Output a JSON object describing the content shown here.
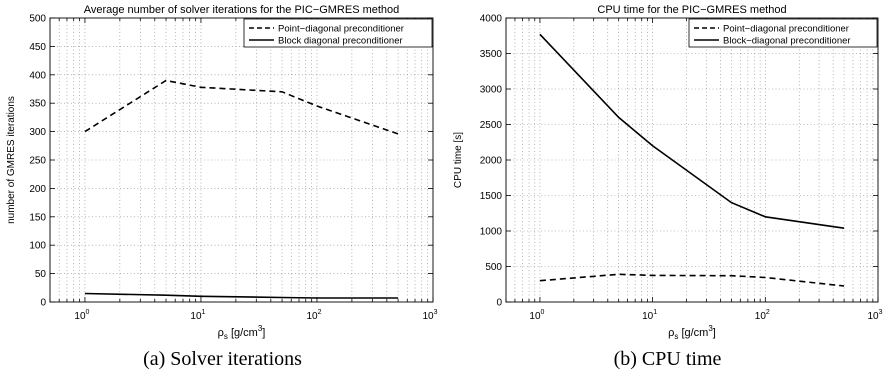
{
  "chart_data": [
    {
      "type": "line",
      "title": "Average number of solver iterations for the PIC−GMRES method",
      "xlabel": "ρ",
      "xlabel_sub": "s",
      "xlabel_unit": " [g/cm",
      "xlabel_sup": "3",
      "xlabel_end": "]",
      "ylabel": "number of GMRES iterations",
      "xscale": "log",
      "xlim": [
        0.5,
        1000
      ],
      "ylim": [
        0,
        500
      ],
      "ytick_values": [
        0,
        50,
        100,
        150,
        200,
        250,
        300,
        350,
        400,
        450,
        500
      ],
      "ytick_labels": [
        "0",
        "50",
        "100",
        "150",
        "200",
        "250",
        "300",
        "350",
        "400",
        "450",
        "500"
      ],
      "xtick_base": "10",
      "xtick_exps": [
        "0",
        "1",
        "2",
        "3"
      ],
      "grid": true,
      "legend_position": "top-right",
      "series": [
        {
          "name": "Point−diagonal preconditioner",
          "style": "dashed",
          "x": [
            1,
            5,
            10,
            50,
            100,
            500
          ],
          "y": [
            300,
            390,
            378,
            370,
            345,
            296
          ]
        },
        {
          "name": "Block diagonal preconditioner",
          "style": "solid",
          "x": [
            1,
            5,
            10,
            50,
            100,
            500
          ],
          "y": [
            15,
            12,
            10,
            8,
            7,
            7
          ]
        }
      ],
      "caption": "(a) Solver iterations"
    },
    {
      "type": "line",
      "title": "CPU time for the PIC−GMRES method",
      "xlabel": "ρ",
      "xlabel_sub": "s",
      "xlabel_unit": " [g/cm",
      "xlabel_sup": "3",
      "xlabel_end": "]",
      "ylabel": "CPU time [s]",
      "xscale": "log",
      "xlim": [
        0.5,
        1000
      ],
      "ylim": [
        0,
        4000
      ],
      "ytick_values": [
        0,
        500,
        1000,
        1500,
        2000,
        2500,
        3000,
        3500,
        4000
      ],
      "ytick_labels": [
        "0",
        "500",
        "1000",
        "1500",
        "2000",
        "2500",
        "3000",
        "3500",
        "4000"
      ],
      "xtick_base": "10",
      "xtick_exps": [
        "0",
        "1",
        "2",
        "3"
      ],
      "grid": true,
      "legend_position": "top-right",
      "series": [
        {
          "name": "Point−diagonal preconditioner",
          "style": "dashed",
          "x": [
            1,
            5,
            10,
            50,
            100,
            500
          ],
          "y": [
            300,
            390,
            375,
            370,
            345,
            225
          ]
        },
        {
          "name": "Block−diagonal preconditioner",
          "style": "solid",
          "x": [
            1,
            5,
            10,
            50,
            100,
            500
          ],
          "y": [
            3770,
            2600,
            2200,
            1400,
            1200,
            1040
          ]
        }
      ],
      "caption": "(b) CPU time"
    }
  ]
}
